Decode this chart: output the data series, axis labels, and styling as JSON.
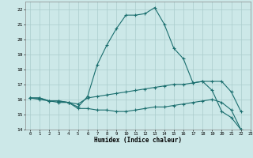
{
  "xlabel": "Humidex (Indice chaleur)",
  "bg_color": "#cce8e8",
  "grid_color": "#aacccc",
  "line_color": "#1a6e6e",
  "xlim": [
    -0.5,
    23
  ],
  "ylim": [
    14,
    22.5
  ],
  "xticks": [
    0,
    1,
    2,
    3,
    4,
    5,
    6,
    7,
    8,
    9,
    10,
    11,
    12,
    13,
    14,
    15,
    16,
    17,
    18,
    19,
    20,
    21,
    22,
    23
  ],
  "yticks": [
    14,
    15,
    16,
    17,
    18,
    19,
    20,
    21,
    22
  ],
  "line1_x": [
    0,
    1,
    2,
    3,
    4,
    5,
    6,
    7,
    8,
    9,
    10,
    11,
    12,
    13,
    14,
    15,
    16,
    17,
    18,
    19,
    20,
    21,
    22
  ],
  "line1_y": [
    16.1,
    16.1,
    15.9,
    15.8,
    15.8,
    15.5,
    16.2,
    18.3,
    19.6,
    20.7,
    21.6,
    21.6,
    21.7,
    22.1,
    21.0,
    19.4,
    18.7,
    17.1,
    17.2,
    16.6,
    15.2,
    14.8,
    14.0
  ],
  "line2_x": [
    0,
    1,
    2,
    3,
    4,
    5,
    6,
    7,
    8,
    9,
    10,
    11,
    12,
    13,
    14,
    15,
    16,
    17,
    18,
    19,
    20,
    21,
    22
  ],
  "line2_y": [
    16.1,
    16.1,
    15.9,
    15.9,
    15.8,
    15.7,
    16.1,
    16.2,
    16.3,
    16.4,
    16.5,
    16.6,
    16.7,
    16.8,
    16.9,
    17.0,
    17.0,
    17.1,
    17.2,
    17.2,
    17.2,
    16.5,
    15.2
  ],
  "line3_x": [
    0,
    1,
    2,
    3,
    4,
    5,
    6,
    7,
    8,
    9,
    10,
    11,
    12,
    13,
    14,
    15,
    16,
    17,
    18,
    19,
    20,
    21,
    22
  ],
  "line3_y": [
    16.1,
    16.0,
    15.9,
    15.9,
    15.8,
    15.4,
    15.4,
    15.3,
    15.3,
    15.2,
    15.2,
    15.3,
    15.4,
    15.5,
    15.5,
    15.6,
    15.7,
    15.8,
    15.9,
    16.0,
    15.8,
    15.3,
    14.0
  ]
}
